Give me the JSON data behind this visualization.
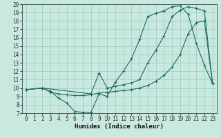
{
  "bg_color": "#c8e8e0",
  "line_color": "#1a6b5a",
  "grid_color": "#a0c8c0",
  "xlabel": "Humidex (Indice chaleur)",
  "xlim": [
    -0.5,
    23.5
  ],
  "ylim": [
    7,
    20
  ],
  "xticks": [
    0,
    1,
    2,
    3,
    4,
    5,
    6,
    7,
    8,
    9,
    10,
    11,
    12,
    13,
    14,
    15,
    16,
    17,
    18,
    19,
    20,
    21,
    22,
    23
  ],
  "yticks": [
    7,
    8,
    9,
    10,
    11,
    12,
    13,
    14,
    15,
    16,
    17,
    18,
    19,
    20
  ],
  "curve1_x": [
    0,
    2,
    3,
    4,
    5,
    6,
    7,
    8,
    9,
    10,
    11,
    12,
    13,
    14,
    15,
    16,
    17,
    18,
    19,
    20,
    21,
    22,
    23
  ],
  "curve1_y": [
    9.8,
    10.0,
    9.6,
    8.8,
    8.2,
    7.2,
    7.1,
    7.1,
    9.3,
    9.0,
    10.7,
    12.0,
    13.5,
    15.8,
    18.5,
    18.9,
    19.2,
    19.7,
    19.8,
    18.8,
    15.3,
    12.7,
    10.5
  ],
  "curve2_x": [
    0,
    2,
    3,
    4,
    5,
    6,
    7,
    8,
    9,
    10,
    11,
    12,
    13,
    14,
    15,
    16,
    17,
    18,
    19,
    20,
    21,
    22,
    23
  ],
  "curve2_y": [
    9.8,
    10.0,
    9.5,
    9.3,
    9.2,
    9.1,
    9.1,
    9.2,
    9.4,
    9.5,
    9.6,
    9.7,
    9.8,
    10.0,
    10.3,
    10.8,
    11.5,
    12.5,
    14.0,
    16.5,
    17.8,
    18.0,
    10.5
  ],
  "curve3_x": [
    0,
    2,
    8,
    9,
    10,
    11,
    12,
    13,
    14,
    15,
    16,
    17,
    18,
    19,
    20,
    21,
    22,
    23
  ],
  "curve3_y": [
    9.8,
    10.0,
    9.3,
    11.8,
    10.0,
    10.2,
    10.4,
    10.6,
    11.0,
    13.0,
    14.5,
    16.2,
    18.5,
    19.3,
    19.7,
    19.5,
    19.2,
    10.5
  ]
}
